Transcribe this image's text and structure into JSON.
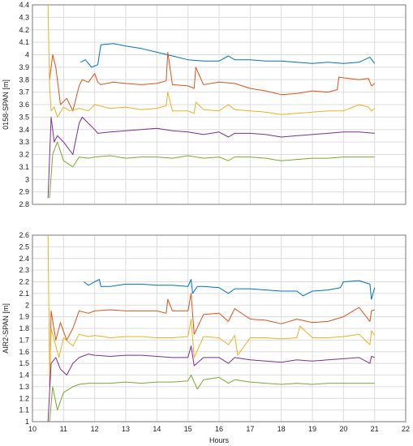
{
  "chart_data": [
    {
      "type": "line",
      "ylabel": "0158-SPAN [m]",
      "xlabel": "",
      "xlim": [
        10,
        22
      ],
      "ylim": [
        2.8,
        4.4
      ],
      "yticks": [
        "2.8",
        "2.9",
        "3",
        "3.1",
        "3.2",
        "3.3",
        "3.4",
        "3.5",
        "3.6",
        "3.7",
        "3.8",
        "3.9",
        "4",
        "4.1",
        "4.2",
        "4.3",
        "4.4"
      ],
      "xticks_labeled": false,
      "grid": true,
      "series": [
        {
          "color": "#0072BD",
          "x": [
            11.55,
            11.7,
            11.9,
            12.1,
            12.2,
            12.6,
            13.0,
            13.5,
            14.0,
            14.5,
            15.0,
            15.5,
            16.0,
            16.3,
            16.5,
            17.0,
            17.5,
            18.0,
            18.5,
            19.0,
            19.5,
            20.0,
            20.5,
            20.85,
            21.0
          ],
          "y": [
            3.94,
            3.96,
            3.9,
            3.92,
            4.08,
            4.09,
            4.07,
            4.05,
            4.02,
            3.99,
            3.96,
            3.95,
            3.95,
            3.99,
            3.96,
            3.96,
            3.95,
            3.95,
            3.94,
            3.93,
            3.94,
            3.93,
            3.94,
            3.98,
            3.93
          ]
        },
        {
          "color": "#D95319",
          "x": [
            10.55,
            10.65,
            10.75,
            10.9,
            11.1,
            11.3,
            11.5,
            11.6,
            11.8,
            12.0,
            12.1,
            12.2,
            12.6,
            13.0,
            13.5,
            14.0,
            14.3,
            14.35,
            14.5,
            15.0,
            15.2,
            15.25,
            15.5,
            16.0,
            16.5,
            17.0,
            17.5,
            18.0,
            18.5,
            19.0,
            19.5,
            19.8,
            19.85,
            20.5,
            20.8,
            20.9,
            21.0
          ],
          "y": [
            3.8,
            4.0,
            3.9,
            3.6,
            3.65,
            3.55,
            3.75,
            3.8,
            3.78,
            3.85,
            3.78,
            3.76,
            3.78,
            3.77,
            3.76,
            3.77,
            3.79,
            4.02,
            3.76,
            3.75,
            3.73,
            3.9,
            3.76,
            3.78,
            3.77,
            3.73,
            3.71,
            3.68,
            3.69,
            3.71,
            3.7,
            3.72,
            3.82,
            3.8,
            3.81,
            3.75,
            3.77
          ]
        },
        {
          "color": "#EDB120",
          "x": [
            10.5,
            10.55,
            10.6,
            10.7,
            10.8,
            11.0,
            11.2,
            11.5,
            11.8,
            12.0,
            12.5,
            13.0,
            13.5,
            14.0,
            14.3,
            14.35,
            14.5,
            15.0,
            15.2,
            15.25,
            15.5,
            16.0,
            16.3,
            16.5,
            17.0,
            17.5,
            18.0,
            18.5,
            19.0,
            19.5,
            20.0,
            20.5,
            20.8,
            20.9,
            21.0
          ],
          "y": [
            4.4,
            3.75,
            3.55,
            3.58,
            3.5,
            3.58,
            3.55,
            3.57,
            3.55,
            3.6,
            3.57,
            3.58,
            3.56,
            3.57,
            3.59,
            3.7,
            3.55,
            3.55,
            3.53,
            3.62,
            3.56,
            3.55,
            3.6,
            3.56,
            3.55,
            3.54,
            3.52,
            3.53,
            3.54,
            3.55,
            3.55,
            3.6,
            3.58,
            3.55,
            3.57
          ]
        },
        {
          "color": "#7E2F8E",
          "x": [
            10.5,
            10.6,
            10.7,
            10.8,
            11.0,
            11.3,
            11.5,
            11.6,
            11.8,
            12.0,
            12.1,
            12.5,
            13.0,
            13.5,
            14.0,
            14.5,
            15.0,
            15.5,
            16.0,
            16.3,
            16.5,
            17.0,
            17.5,
            18.0,
            18.5,
            19.0,
            19.5,
            20.0,
            20.5,
            21.0
          ],
          "y": [
            2.85,
            3.5,
            3.3,
            3.35,
            3.3,
            3.2,
            3.45,
            3.5,
            3.45,
            3.4,
            3.37,
            3.38,
            3.39,
            3.4,
            3.41,
            3.39,
            3.38,
            3.36,
            3.38,
            3.34,
            3.37,
            3.37,
            3.36,
            3.34,
            3.35,
            3.36,
            3.37,
            3.38,
            3.38,
            3.37
          ]
        },
        {
          "color": "#77AC30",
          "x": [
            10.55,
            10.65,
            10.8,
            11.0,
            11.3,
            11.5,
            11.8,
            12.0,
            12.5,
            13.0,
            13.5,
            14.0,
            14.5,
            15.0,
            15.5,
            16.0,
            16.3,
            16.5,
            17.0,
            17.5,
            18.0,
            18.5,
            19.0,
            19.5,
            20.0,
            20.5,
            21.0
          ],
          "y": [
            2.85,
            3.2,
            3.3,
            3.15,
            3.1,
            3.18,
            3.17,
            3.18,
            3.19,
            3.17,
            3.18,
            3.18,
            3.17,
            3.19,
            3.17,
            3.18,
            3.15,
            3.18,
            3.18,
            3.17,
            3.15,
            3.16,
            3.17,
            3.17,
            3.18,
            3.18,
            3.18
          ]
        }
      ]
    },
    {
      "type": "line",
      "ylabel": "AIR2-SPAN [m]",
      "xlabel": "Hours",
      "xlim": [
        10,
        22
      ],
      "ylim": [
        1,
        2.6
      ],
      "yticks": [
        "1",
        "1.1",
        "1.2",
        "1.3",
        "1.4",
        "1.5",
        "1.6",
        "1.7",
        "1.8",
        "1.9",
        "2",
        "2.1",
        "2.2",
        "2.3",
        "2.4",
        "2.5",
        "2.6"
      ],
      "xticks": [
        "10",
        "11",
        "12",
        "13",
        "14",
        "15",
        "16",
        "17",
        "18",
        "19",
        "20",
        "21",
        "22"
      ],
      "grid": true,
      "series": [
        {
          "color": "#0072BD",
          "x": [
            11.65,
            11.8,
            12.0,
            12.15,
            12.2,
            12.5,
            13.0,
            13.5,
            14.0,
            14.5,
            15.0,
            15.1,
            15.15,
            15.3,
            15.5,
            16.0,
            16.3,
            16.5,
            17.0,
            17.5,
            18.0,
            18.5,
            18.7,
            19.0,
            19.5,
            19.9,
            20.0,
            20.5,
            20.85,
            20.9,
            21.0
          ],
          "y": [
            2.2,
            2.17,
            2.2,
            2.22,
            2.16,
            2.16,
            2.18,
            2.18,
            2.17,
            2.17,
            2.16,
            2.22,
            2.1,
            2.16,
            2.16,
            2.15,
            2.1,
            2.14,
            2.14,
            2.13,
            2.12,
            2.12,
            2.08,
            2.12,
            2.13,
            2.15,
            2.2,
            2.21,
            2.18,
            2.05,
            2.15
          ]
        },
        {
          "color": "#D95319",
          "x": [
            10.55,
            10.6,
            10.75,
            10.9,
            11.1,
            11.3,
            11.5,
            11.8,
            12.0,
            12.5,
            13.0,
            13.5,
            14.0,
            14.3,
            14.35,
            14.5,
            15.0,
            15.1,
            15.2,
            15.5,
            16.0,
            16.3,
            16.5,
            17.0,
            17.5,
            18.0,
            18.5,
            19.0,
            19.5,
            20.0,
            20.5,
            20.85,
            20.9,
            21.0
          ],
          "y": [
            1.3,
            1.95,
            1.7,
            1.85,
            1.7,
            1.8,
            1.95,
            1.93,
            1.95,
            1.96,
            1.95,
            1.95,
            1.95,
            1.93,
            2.05,
            1.95,
            1.95,
            2.1,
            1.75,
            1.92,
            1.93,
            1.86,
            1.97,
            1.88,
            1.87,
            1.84,
            1.88,
            1.85,
            1.86,
            1.9,
            1.98,
            1.86,
            1.95,
            1.96
          ]
        },
        {
          "color": "#EDB120",
          "x": [
            10.5,
            10.55,
            10.6,
            10.7,
            10.85,
            11.0,
            11.3,
            11.5,
            11.8,
            12.0,
            12.5,
            13.0,
            13.5,
            14.0,
            14.5,
            15.0,
            15.1,
            15.2,
            15.5,
            16.0,
            16.3,
            16.5,
            16.6,
            17.0,
            17.5,
            18.0,
            18.5,
            18.6,
            19.0,
            19.5,
            20.0,
            20.5,
            20.85,
            20.9,
            21.0
          ],
          "y": [
            2.6,
            1.4,
            1.8,
            1.7,
            1.55,
            1.72,
            1.65,
            1.75,
            1.73,
            1.74,
            1.72,
            1.73,
            1.73,
            1.72,
            1.72,
            1.73,
            1.88,
            1.55,
            1.73,
            1.72,
            1.66,
            1.74,
            1.57,
            1.72,
            1.72,
            1.71,
            1.72,
            1.82,
            1.72,
            1.72,
            1.73,
            1.75,
            1.66,
            1.78,
            1.74
          ]
        },
        {
          "color": "#7E2F8E",
          "x": [
            10.5,
            10.6,
            10.75,
            10.9,
            11.1,
            11.3,
            11.5,
            11.8,
            12.0,
            12.5,
            13.0,
            13.5,
            14.0,
            14.5,
            15.0,
            15.1,
            15.2,
            15.5,
            16.0,
            16.3,
            16.5,
            17.0,
            17.5,
            18.0,
            18.5,
            19.0,
            19.5,
            20.0,
            20.5,
            20.85,
            20.9,
            21.0
          ],
          "y": [
            1.0,
            1.5,
            1.55,
            1.45,
            1.4,
            1.5,
            1.55,
            1.58,
            1.57,
            1.56,
            1.57,
            1.57,
            1.56,
            1.55,
            1.55,
            1.65,
            1.48,
            1.55,
            1.55,
            1.5,
            1.55,
            1.53,
            1.52,
            1.51,
            1.53,
            1.52,
            1.53,
            1.54,
            1.55,
            1.5,
            1.56,
            1.55
          ]
        },
        {
          "color": "#77AC30",
          "x": [
            10.55,
            10.65,
            10.8,
            11.0,
            11.3,
            11.5,
            11.8,
            12.0,
            12.5,
            13.0,
            13.5,
            14.0,
            14.5,
            15.0,
            15.1,
            15.3,
            15.5,
            16.0,
            16.3,
            16.5,
            17.0,
            17.5,
            18.0,
            18.5,
            19.0,
            19.5,
            20.0,
            20.5,
            21.0
          ],
          "y": [
            1.0,
            1.3,
            1.1,
            1.25,
            1.3,
            1.32,
            1.33,
            1.33,
            1.33,
            1.34,
            1.33,
            1.34,
            1.34,
            1.35,
            1.4,
            1.28,
            1.36,
            1.38,
            1.33,
            1.36,
            1.34,
            1.33,
            1.32,
            1.33,
            1.32,
            1.33,
            1.33,
            1.33,
            1.33
          ]
        }
      ]
    }
  ]
}
